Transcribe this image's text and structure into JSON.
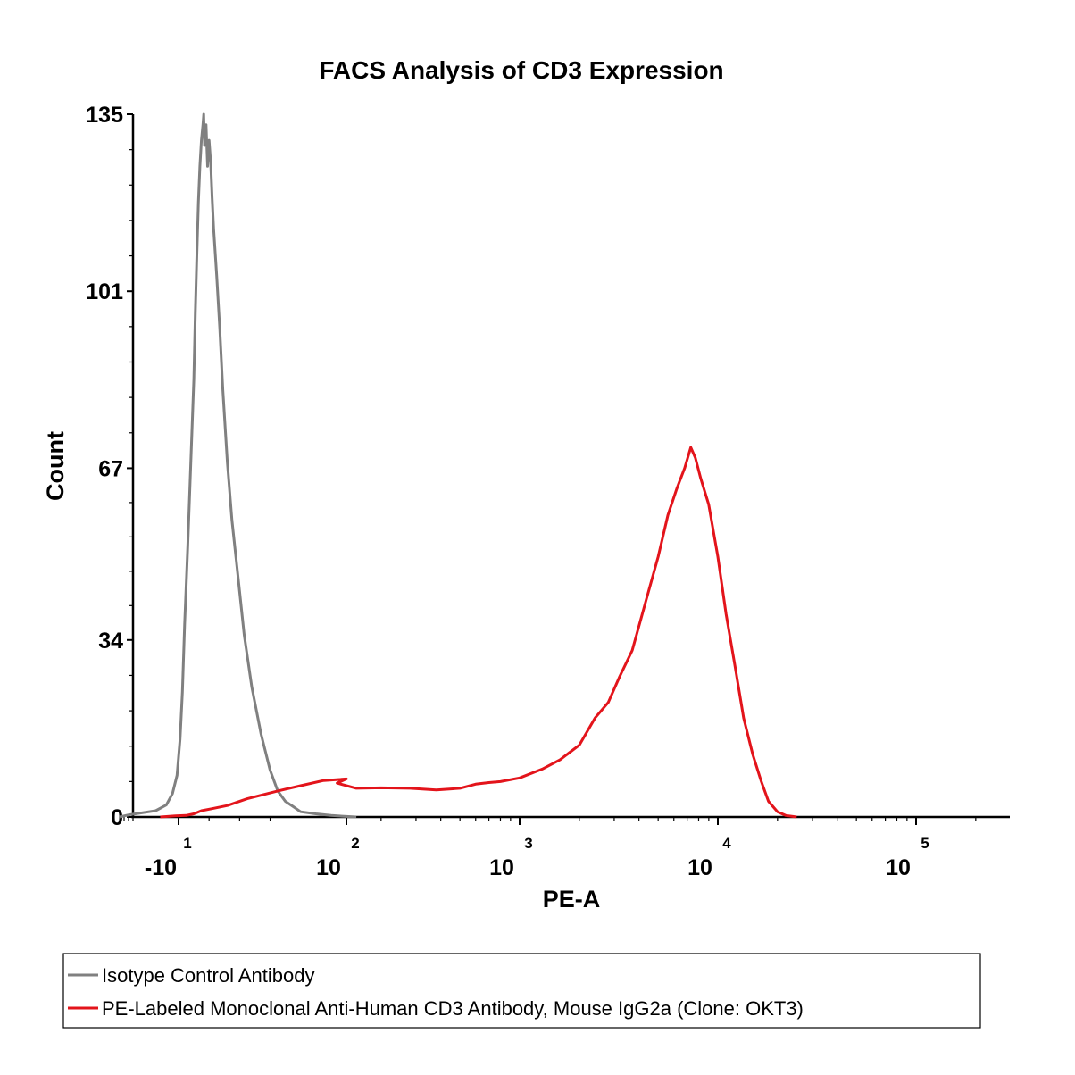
{
  "chart_data": {
    "type": "line",
    "title": "FACS Analysis of CD3 Expression",
    "xlabel": "PE-A",
    "ylabel": "Count",
    "x_scale": "biexponential",
    "x_ticks": [
      {
        "base": "-10",
        "exp": "1",
        "value": -10
      },
      {
        "base": "10",
        "exp": "2",
        "value": 100
      },
      {
        "base": "10",
        "exp": "3",
        "value": 1000
      },
      {
        "base": "10",
        "exp": "4",
        "value": 10000
      },
      {
        "base": "10",
        "exp": "5",
        "value": 100000
      }
    ],
    "y_ticks": [
      0,
      34,
      67,
      101,
      135
    ],
    "ylim": [
      0,
      135
    ],
    "grid": false,
    "legend_position": "bottom",
    "series": [
      {
        "name": "Isotype Control Antibody",
        "color": "#808080",
        "points": [
          [
            -60,
            0
          ],
          [
            -40,
            0.4
          ],
          [
            -25,
            1.2
          ],
          [
            -18,
            2.3
          ],
          [
            -14,
            4.5
          ],
          [
            -11,
            8
          ],
          [
            -9,
            15
          ],
          [
            -7.5,
            24
          ],
          [
            -6,
            37
          ],
          [
            -4,
            52
          ],
          [
            -2,
            68
          ],
          [
            0,
            84
          ],
          [
            1,
            97
          ],
          [
            2,
            108
          ],
          [
            3,
            118
          ],
          [
            4,
            125
          ],
          [
            5,
            130
          ],
          [
            6,
            133
          ],
          [
            6.5,
            135
          ],
          [
            7,
            129
          ],
          [
            8,
            133
          ],
          [
            9,
            125
          ],
          [
            10,
            130
          ],
          [
            11,
            126
          ],
          [
            12,
            119
          ],
          [
            13,
            113
          ],
          [
            15,
            104
          ],
          [
            17,
            94
          ],
          [
            19,
            82
          ],
          [
            22,
            68
          ],
          [
            25,
            57
          ],
          [
            29,
            46
          ],
          [
            33,
            35
          ],
          [
            38,
            25
          ],
          [
            44,
            16
          ],
          [
            50,
            9
          ],
          [
            55,
            5
          ],
          [
            60,
            3
          ],
          [
            65,
            2
          ],
          [
            70,
            1
          ],
          [
            80,
            0.6
          ],
          [
            90,
            0.3
          ],
          [
            100,
            0.1
          ],
          [
            150,
            0
          ]
        ]
      },
      {
        "name": "PE-Labeled Monoclonal Anti-Human CD3 Antibody, Mouse IgG2a (Clone: OKT3)",
        "color": "#e3141b",
        "points": [
          [
            -22,
            0
          ],
          [
            -12,
            0.2
          ],
          [
            -5,
            0.3
          ],
          [
            0,
            0.6
          ],
          [
            5,
            1.2
          ],
          [
            12,
            1.6
          ],
          [
            22,
            2.2
          ],
          [
            35,
            3.5
          ],
          [
            55,
            5
          ],
          [
            70,
            6
          ],
          [
            85,
            7
          ],
          [
            100,
            7.3
          ],
          [
            120,
            6.5
          ],
          [
            150,
            5.5
          ],
          [
            200,
            5.6
          ],
          [
            280,
            5.5
          ],
          [
            380,
            5.2
          ],
          [
            500,
            5.5
          ],
          [
            600,
            6.3
          ],
          [
            700,
            6.6
          ],
          [
            800,
            6.8
          ],
          [
            1000,
            7.5
          ],
          [
            1300,
            9.2
          ],
          [
            1600,
            11
          ],
          [
            2000,
            13.8
          ],
          [
            2400,
            19
          ],
          [
            2800,
            22
          ],
          [
            3200,
            27
          ],
          [
            3700,
            32
          ],
          [
            4300,
            41
          ],
          [
            5000,
            50
          ],
          [
            5600,
            58
          ],
          [
            6200,
            63
          ],
          [
            6800,
            67
          ],
          [
            7300,
            71
          ],
          [
            7700,
            69
          ],
          [
            8200,
            65
          ],
          [
            9000,
            60
          ],
          [
            10000,
            50
          ],
          [
            11000,
            39
          ],
          [
            12200,
            29
          ],
          [
            13500,
            19
          ],
          [
            15000,
            12
          ],
          [
            16500,
            7
          ],
          [
            18000,
            3
          ],
          [
            20000,
            1
          ],
          [
            22000,
            0.3
          ],
          [
            25000,
            0
          ]
        ]
      }
    ]
  }
}
